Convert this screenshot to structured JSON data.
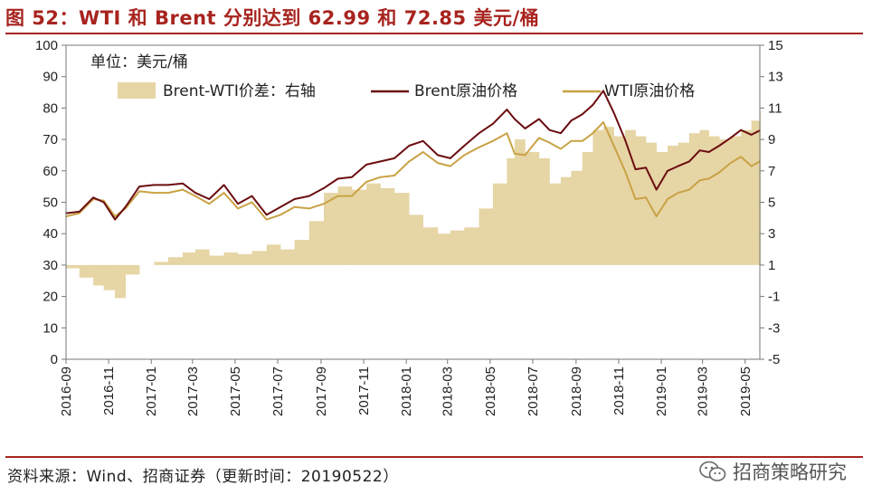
{
  "header": {
    "title": "图 52：WTI 和 Brent 分别达到 62.99 和 72.85 美元/桶"
  },
  "footer": {
    "source": "资料来源：Wind、招商证券（更新时间：20190522）",
    "brand": "招商策略研究"
  },
  "colors": {
    "accent": "#a8241f",
    "brent": "#6b0d10",
    "wti": "#c9a245",
    "spread": "#e6d5a5"
  },
  "chart_data": {
    "type": "line",
    "unit_label": "单位：美元/桶",
    "x_ticks": [
      "2016-09",
      "2016-11",
      "2017-01",
      "2017-03",
      "2017-05",
      "2017-07",
      "2017-09",
      "2017-11",
      "2018-01",
      "2018-03",
      "2018-05",
      "2018-07",
      "2018-09",
      "2018-11",
      "2019-01",
      "2019-03",
      "2019-05"
    ],
    "left_axis": {
      "ylim": [
        0,
        100
      ],
      "ticks": [
        "0",
        "10",
        "20",
        "30",
        "40",
        "50",
        "60",
        "70",
        "80",
        "90",
        "100"
      ]
    },
    "right_axis": {
      "ylim": [
        -5,
        15
      ],
      "ticks": [
        "-5",
        "-3",
        "-1",
        "1",
        "3",
        "5",
        "7",
        "9",
        "11",
        "13",
        "15"
      ]
    },
    "grid": false,
    "legend_position": "top",
    "series": [
      {
        "name": "Brent-WTI价差：右轴",
        "type": "area",
        "axis": "right",
        "x": [
          "2016-09-01",
          "2016-09-20",
          "2016-10-10",
          "2016-10-25",
          "2016-11-10",
          "2016-11-25",
          "2016-12-15",
          "2017-01-05",
          "2017-01-25",
          "2017-02-15",
          "2017-03-05",
          "2017-03-25",
          "2017-04-15",
          "2017-05-05",
          "2017-05-25",
          "2017-06-15",
          "2017-07-05",
          "2017-07-25",
          "2017-08-15",
          "2017-09-05",
          "2017-09-25",
          "2017-10-15",
          "2017-11-05",
          "2017-11-25",
          "2017-12-15",
          "2018-01-05",
          "2018-01-25",
          "2018-02-15",
          "2018-03-05",
          "2018-03-25",
          "2018-04-15",
          "2018-05-05",
          "2018-05-25",
          "2018-06-05",
          "2018-06-20",
          "2018-07-10",
          "2018-07-25",
          "2018-08-10",
          "2018-08-25",
          "2018-09-10",
          "2018-09-25",
          "2018-10-10",
          "2018-10-25",
          "2018-11-10",
          "2018-11-25",
          "2018-12-10",
          "2018-12-25",
          "2019-01-10",
          "2019-01-25",
          "2019-02-10",
          "2019-02-25",
          "2019-03-10",
          "2019-03-25",
          "2019-04-10",
          "2019-04-25",
          "2019-05-10",
          "2019-05-22"
        ],
        "values": [
          0.8,
          0.2,
          -0.3,
          -0.6,
          -1.1,
          0.4,
          1.0,
          1.2,
          1.5,
          1.8,
          2.0,
          1.6,
          1.8,
          1.7,
          1.9,
          2.3,
          2.0,
          2.6,
          3.8,
          5.6,
          6.0,
          5.8,
          6.2,
          5.9,
          5.6,
          4.2,
          3.4,
          3.0,
          3.2,
          3.4,
          4.6,
          6.2,
          7.8,
          9.0,
          8.2,
          7.8,
          6.2,
          6.6,
          7.0,
          8.2,
          9.6,
          9.8,
          9.2,
          9.6,
          9.2,
          8.8,
          8.2,
          8.6,
          8.8,
          9.4,
          9.6,
          9.2,
          9.0,
          9.2,
          9.6,
          10.2,
          10.8
        ]
      },
      {
        "name": "Brent原油价格",
        "type": "line",
        "axis": "left",
        "x": [
          "2016-09-01",
          "2016-09-20",
          "2016-10-10",
          "2016-10-25",
          "2016-11-10",
          "2016-11-25",
          "2016-12-15",
          "2017-01-05",
          "2017-01-25",
          "2017-02-15",
          "2017-03-05",
          "2017-03-25",
          "2017-04-15",
          "2017-05-05",
          "2017-05-25",
          "2017-06-15",
          "2017-07-05",
          "2017-07-25",
          "2017-08-15",
          "2017-09-05",
          "2017-09-25",
          "2017-10-15",
          "2017-11-05",
          "2017-11-25",
          "2017-12-15",
          "2018-01-05",
          "2018-01-25",
          "2018-02-15",
          "2018-03-05",
          "2018-03-25",
          "2018-04-15",
          "2018-05-05",
          "2018-05-25",
          "2018-06-05",
          "2018-06-20",
          "2018-07-10",
          "2018-07-25",
          "2018-08-10",
          "2018-08-25",
          "2018-09-10",
          "2018-09-25",
          "2018-10-10",
          "2018-10-25",
          "2018-11-10",
          "2018-11-25",
          "2018-12-10",
          "2018-12-25",
          "2019-01-10",
          "2019-01-25",
          "2019-02-10",
          "2019-02-25",
          "2019-03-10",
          "2019-03-25",
          "2019-04-10",
          "2019-04-25",
          "2019-05-10",
          "2019-05-22"
        ],
        "values": [
          46.5,
          47.0,
          51.5,
          50.0,
          44.5,
          48.5,
          55.0,
          55.5,
          55.5,
          56.0,
          53.0,
          51.0,
          55.5,
          49.5,
          52.0,
          46.0,
          48.5,
          51.0,
          52.0,
          54.5,
          57.5,
          58.0,
          62.0,
          63.0,
          64.0,
          68.0,
          69.5,
          65.0,
          64.0,
          68.0,
          72.0,
          75.0,
          79.5,
          76.5,
          73.5,
          76.5,
          73.0,
          72.0,
          76.0,
          78.0,
          81.0,
          85.5,
          78.5,
          70.0,
          60.5,
          61.0,
          54.0,
          60.0,
          61.5,
          63.0,
          66.5,
          66.0,
          68.0,
          70.5,
          73.0,
          71.5,
          72.85
        ]
      },
      {
        "name": "WTI原油价格",
        "type": "line",
        "axis": "left",
        "x": [
          "2016-09-01",
          "2016-09-20",
          "2016-10-10",
          "2016-10-25",
          "2016-11-10",
          "2016-11-25",
          "2016-12-15",
          "2017-01-05",
          "2017-01-25",
          "2017-02-15",
          "2017-03-05",
          "2017-03-25",
          "2017-04-15",
          "2017-05-05",
          "2017-05-25",
          "2017-06-15",
          "2017-07-05",
          "2017-07-25",
          "2017-08-15",
          "2017-09-05",
          "2017-09-25",
          "2017-10-15",
          "2017-11-05",
          "2017-11-25",
          "2017-12-15",
          "2018-01-05",
          "2018-01-25",
          "2018-02-15",
          "2018-03-05",
          "2018-03-25",
          "2018-04-15",
          "2018-05-05",
          "2018-05-25",
          "2018-06-05",
          "2018-06-20",
          "2018-07-10",
          "2018-07-25",
          "2018-08-10",
          "2018-08-25",
          "2018-09-10",
          "2018-09-25",
          "2018-10-10",
          "2018-10-25",
          "2018-11-10",
          "2018-11-25",
          "2018-12-10",
          "2018-12-25",
          "2019-01-10",
          "2019-01-25",
          "2019-02-10",
          "2019-02-25",
          "2019-03-10",
          "2019-03-25",
          "2019-04-10",
          "2019-04-25",
          "2019-05-10",
          "2019-05-22"
        ],
        "values": [
          45.5,
          46.5,
          51.0,
          50.5,
          45.5,
          48.0,
          53.5,
          53.0,
          53.0,
          54.0,
          52.0,
          49.5,
          53.0,
          48.0,
          50.0,
          44.5,
          46.0,
          48.5,
          48.0,
          49.5,
          52.0,
          52.0,
          56.5,
          58.0,
          58.5,
          63.0,
          66.0,
          62.5,
          61.5,
          65.0,
          67.5,
          69.5,
          72.0,
          65.5,
          65.0,
          70.5,
          69.0,
          67.0,
          69.5,
          69.5,
          72.0,
          75.5,
          68.0,
          60.0,
          51.0,
          51.5,
          45.5,
          51.0,
          53.0,
          54.0,
          57.0,
          57.5,
          59.5,
          62.5,
          64.5,
          61.5,
          62.99
        ]
      }
    ]
  }
}
